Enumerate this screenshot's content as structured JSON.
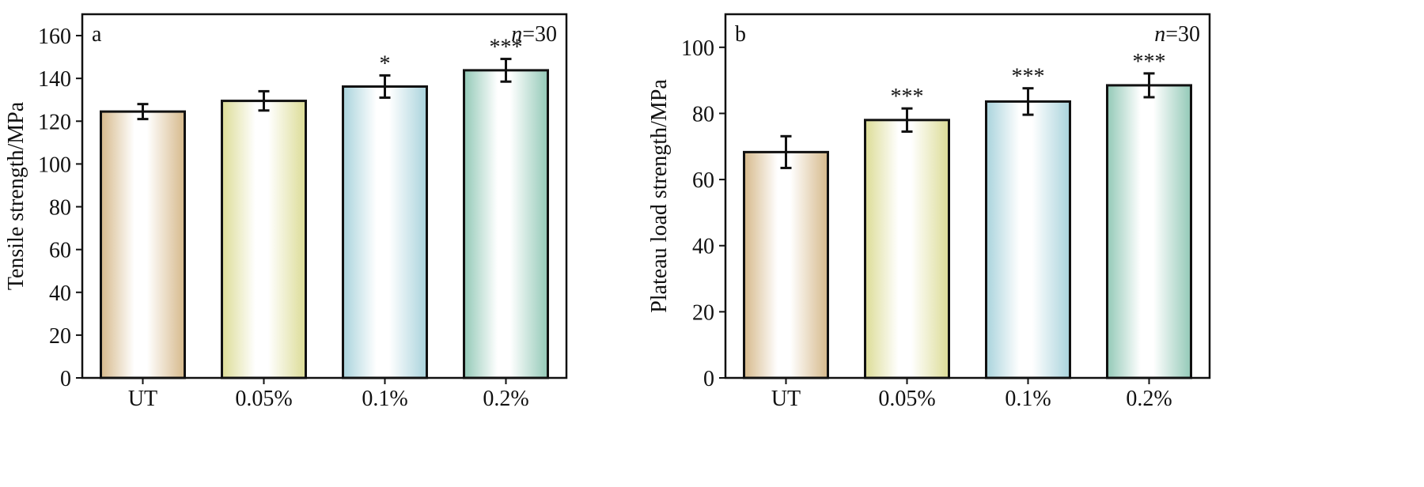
{
  "chart_data": [
    {
      "type": "bar",
      "panel_label": "a",
      "annotation": {
        "italic": "n",
        "text": "=30"
      },
      "ylabel": "Tensile strength/MPa",
      "xlabel": "",
      "categories": [
        "UT",
        "0.05%",
        "0.1%",
        "0.2%"
      ],
      "values": [
        124.5,
        129.5,
        136.2,
        143.8
      ],
      "errors": [
        3.5,
        4.5,
        5.2,
        5.3
      ],
      "significance": [
        "",
        "",
        "*",
        "***"
      ],
      "ylim": [
        0,
        170
      ],
      "yticks": [
        0,
        20,
        40,
        60,
        80,
        100,
        120,
        140,
        160
      ],
      "grid": false,
      "legend": "none"
    },
    {
      "type": "bar",
      "panel_label": "b",
      "annotation": {
        "italic": "n",
        "text": "=30"
      },
      "ylabel": "Plateau load strength/MPa",
      "xlabel": "",
      "categories": [
        "UT",
        "0.05%",
        "0.1%",
        "0.2%"
      ],
      "values": [
        68.3,
        78.0,
        83.6,
        88.5
      ],
      "errors": [
        4.8,
        3.5,
        4.0,
        3.6
      ],
      "significance": [
        "",
        "***",
        "***",
        "***"
      ],
      "ylim": [
        0,
        110
      ],
      "yticks": [
        0,
        20,
        40,
        60,
        80,
        100
      ],
      "grid": false,
      "legend": "none"
    }
  ],
  "colors": {
    "bar_edges": [
      "#d6b98b",
      "#dcdc96",
      "#a9d3dc",
      "#93c9b7"
    ],
    "bar_outline": "#111111"
  }
}
